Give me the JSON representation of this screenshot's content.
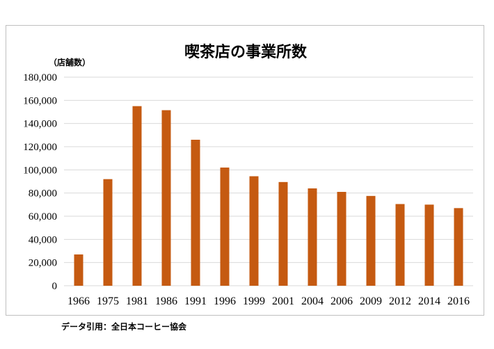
{
  "chart_data": {
    "type": "bar",
    "title": "喫茶店の事業所数",
    "unit_label": "（店舗数）",
    "categories": [
      "1966",
      "1975",
      "1981",
      "1986",
      "1991",
      "1996",
      "1999",
      "2001",
      "2004",
      "2006",
      "2009",
      "2012",
      "2014",
      "2016"
    ],
    "values": [
      27000,
      92000,
      155000,
      151500,
      126000,
      102000,
      94500,
      89500,
      84000,
      81000,
      77500,
      70500,
      70000,
      67000
    ],
    "ylim": [
      0,
      180000
    ],
    "yticks": [
      "0",
      "20,000",
      "40,000",
      "60,000",
      "80,000",
      "100,000",
      "120,000",
      "140,000",
      "160,000",
      "180,000"
    ],
    "bar_color": "#c55a11",
    "grid": true,
    "source": "データ引用：全日本コーヒー協会"
  }
}
